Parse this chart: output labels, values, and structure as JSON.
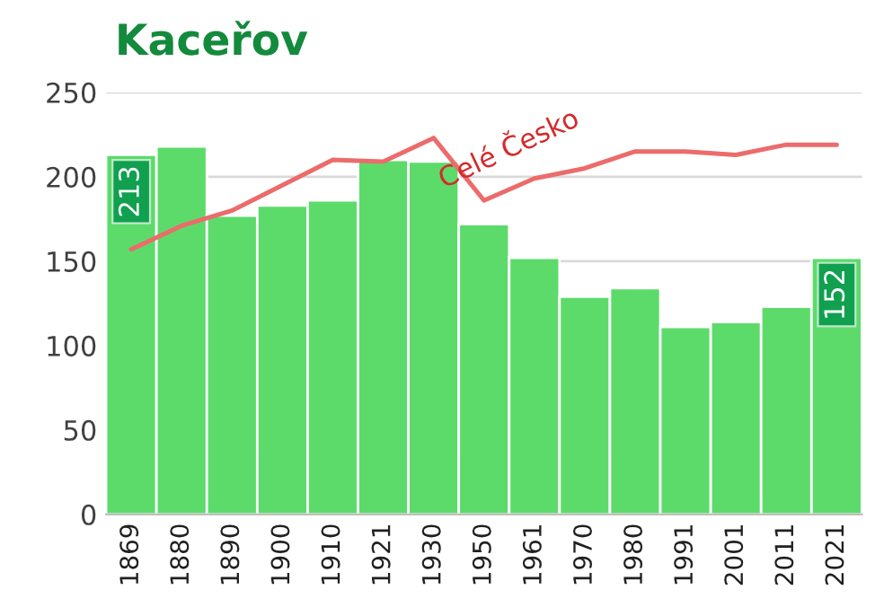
{
  "chart_data": {
    "type": "bar",
    "title": "Kaceřov",
    "categories": [
      "1869",
      "1880",
      "1890",
      "1900",
      "1910",
      "1921",
      "1930",
      "1950",
      "1961",
      "1970",
      "1980",
      "1991",
      "2001",
      "2011",
      "2021"
    ],
    "series": [
      {
        "color": "#5cdb6b",
        "values": [
          213,
          218,
          177,
          183,
          186,
          210,
          209,
          172,
          152,
          129,
          134,
          111,
          114,
          123,
          152
        ],
        "value_labels": [
          "213",
          null,
          null,
          null,
          null,
          null,
          null,
          null,
          null,
          null,
          null,
          null,
          null,
          null,
          "152"
        ]
      },
      {
        "type": "line",
        "name": "Celé Česko",
        "color": "#ec6b6b",
        "values": [
          157,
          171,
          180,
          195,
          210,
          209,
          223,
          186,
          199,
          205,
          215,
          215,
          213,
          219,
          219
        ]
      }
    ],
    "ylim": [
      0,
      250
    ],
    "yticks": [
      0,
      50,
      100,
      150,
      200,
      250
    ],
    "grid": "y",
    "legend": false
  }
}
